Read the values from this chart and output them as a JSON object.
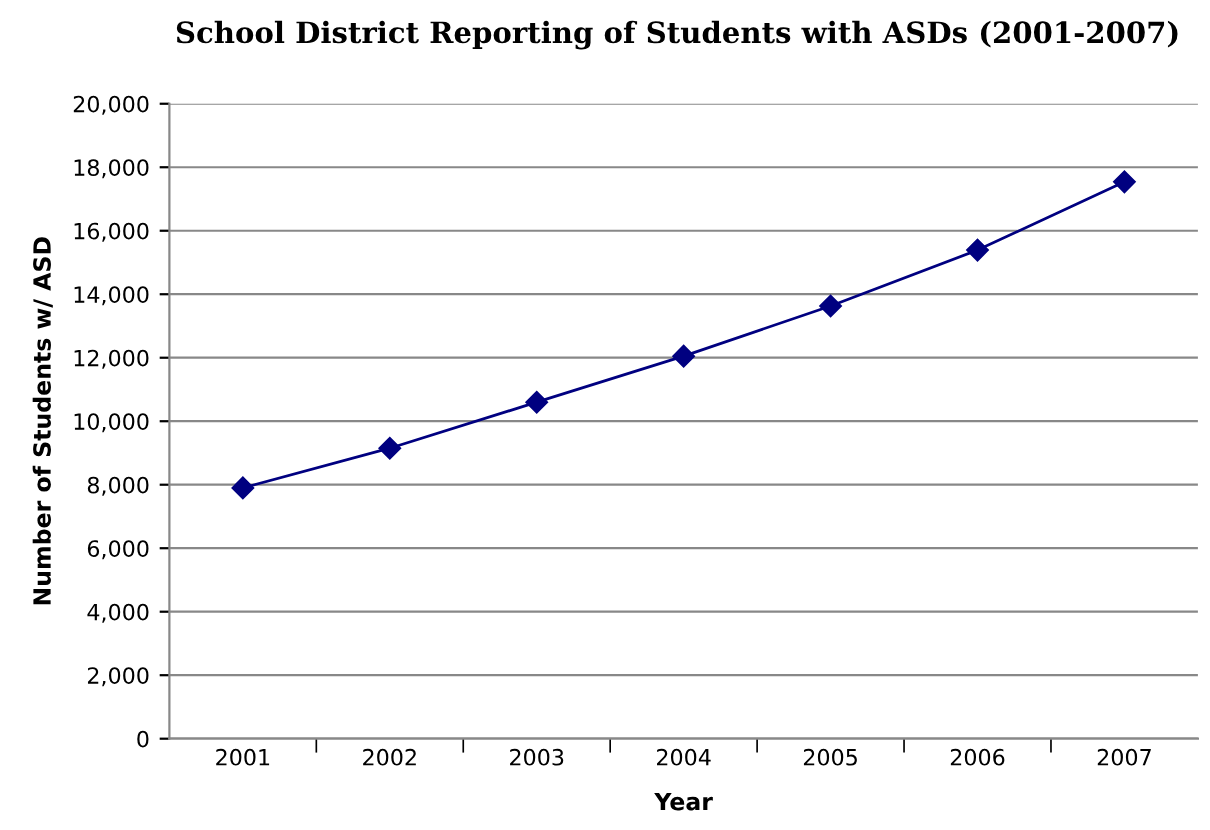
{
  "chart_data": {
    "type": "line",
    "title": "School District Reporting of Students with ASDs (2001-2007)",
    "xlabel": "Year",
    "ylabel": "Number of Students w/ ASD",
    "categories": [
      "2001",
      "2002",
      "2003",
      "2004",
      "2005",
      "2006",
      "2007"
    ],
    "series": [
      {
        "color": "#000080",
        "values": [
          7900,
          9150,
          10600,
          12050,
          13630,
          15390,
          17540
        ]
      }
    ],
    "ylim": [
      0,
      20000
    ],
    "yticks": [
      {
        "value": 0,
        "label": "0"
      },
      {
        "value": 2000,
        "label": "2,000"
      },
      {
        "value": 4000,
        "label": "4,000"
      },
      {
        "value": 6000,
        "label": "6,000"
      },
      {
        "value": 8000,
        "label": "8,000"
      },
      {
        "value": 10000,
        "label": "10,000"
      },
      {
        "value": 12000,
        "label": "12,000"
      },
      {
        "value": 14000,
        "label": "14,000"
      },
      {
        "value": 16000,
        "label": "16,000"
      },
      {
        "value": 18000,
        "label": "18,000"
      },
      {
        "value": 20000,
        "label": "20,000"
      }
    ],
    "grid": "y",
    "marker": "diamond",
    "line_style": "solid",
    "legend": false
  }
}
